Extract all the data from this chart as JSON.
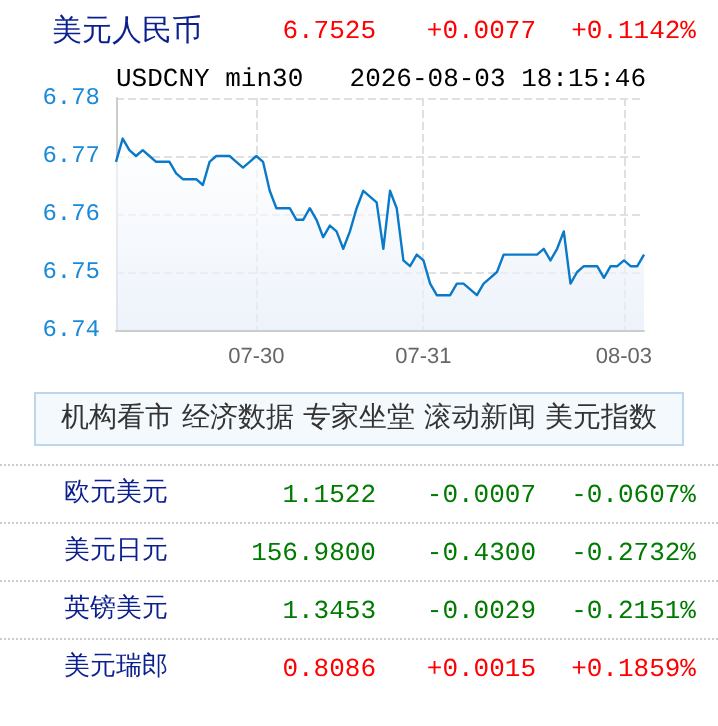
{
  "chart_data": {
    "type": "area",
    "title": "美元人民币",
    "subtitle": "USDCNY min30",
    "annotations": [
      "6.7525",
      "+0.0077",
      "+0.1142%",
      "2026-08-03 18:15:46",
      "机构看市",
      "经济数据",
      "专家坐堂",
      "滚动新闻",
      "美元指数",
      "欧元美元",
      "1.1522",
      "-0.0007",
      "-0.0607%",
      "美元日元",
      "156.9800",
      "-0.4300",
      "-0.2732%",
      "英镑美元",
      "1.3453",
      "-0.0029",
      "-0.2151%",
      "美元瑞郎",
      "0.8086",
      "+0.0015",
      "+0.1859%"
    ],
    "categories": [
      null,
      null,
      null,
      null,
      null,
      null,
      null,
      null,
      null,
      null,
      null,
      null,
      null,
      null,
      null,
      null,
      null,
      null,
      null,
      null,
      null,
      "07-30",
      null,
      null,
      null,
      null,
      null,
      null,
      null,
      null,
      null,
      null,
      null,
      null,
      null,
      null,
      null,
      null,
      null,
      null,
      null,
      null,
      null,
      null,
      null,
      null,
      "07-31",
      null,
      null,
      null,
      null,
      null,
      null,
      null,
      null,
      null,
      null,
      null,
      null,
      null,
      null,
      null,
      null,
      null,
      null,
      null,
      null,
      null,
      null,
      null,
      null,
      null,
      null,
      null,
      null,
      null,
      "08-03",
      null,
      null,
      null
    ],
    "series": [
      {
        "color": "#0a7ac8",
        "values": [
          6.769,
          6.773,
          6.771,
          6.77,
          6.771,
          6.77,
          6.769,
          6.769,
          6.769,
          6.767,
          6.766,
          6.766,
          6.766,
          6.765,
          6.769,
          6.77,
          6.77,
          6.77,
          6.769,
          6.768,
          6.769,
          6.77,
          6.769,
          6.764,
          6.761,
          6.761,
          6.761,
          6.759,
          6.759,
          6.761,
          6.759,
          6.756,
          6.758,
          6.757,
          6.754,
          6.757,
          6.761,
          6.764,
          6.763,
          6.762,
          6.754,
          6.764,
          6.761,
          6.752,
          6.751,
          6.753,
          6.752,
          6.748,
          6.746,
          6.746,
          6.746,
          6.748,
          6.748,
          6.747,
          6.746,
          6.748,
          6.749,
          6.75,
          6.753,
          6.753,
          6.753,
          6.753,
          6.753,
          6.753,
          6.754,
          6.752,
          6.754,
          6.757,
          6.748,
          6.75,
          6.751,
          6.751,
          6.751,
          6.749,
          6.751,
          6.751,
          6.752,
          6.751,
          6.751,
          6.753
        ]
      }
    ],
    "ylim": [
      6.74,
      6.78
    ],
    "yticks": [
      6.74,
      6.75,
      6.76,
      6.77,
      6.78
    ],
    "grid": true,
    "marker": "none",
    "line_style": "solid"
  }
}
